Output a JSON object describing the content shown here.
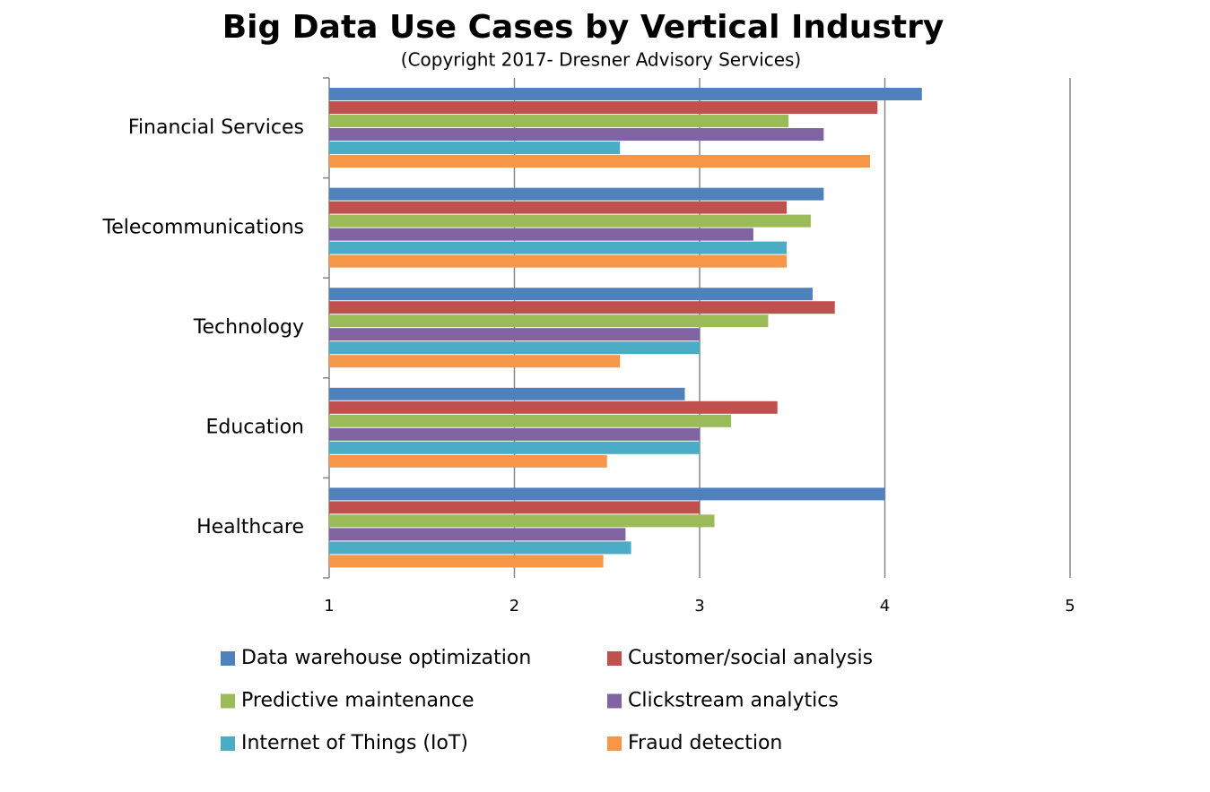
{
  "chart_data": {
    "type": "hbar",
    "title": "Big Data Use Cases by Vertical Industry",
    "subtitle": "(Copyright 2017- Dresner Advisory Services)",
    "categories": [
      "Financial Services",
      "Telecommunications",
      "Technology",
      "Education",
      "Healthcare"
    ],
    "series": [
      {
        "name": "Data warehouse optimization",
        "color": "#4f81bd",
        "values": [
          4.2,
          3.67,
          3.61,
          2.92,
          4.0
        ]
      },
      {
        "name": "Customer/social analysis",
        "color": "#c0504d",
        "values": [
          3.96,
          3.47,
          3.73,
          3.42,
          3.0
        ]
      },
      {
        "name": "Predictive maintenance",
        "color": "#9bbb59",
        "values": [
          3.48,
          3.6,
          3.37,
          3.17,
          3.08
        ]
      },
      {
        "name": "Clickstream analytics",
        "color": "#8064a2",
        "values": [
          3.67,
          3.29,
          3.0,
          3.0,
          2.6
        ]
      },
      {
        "name": "Internet of Things (IoT)",
        "color": "#4bacc6",
        "values": [
          2.57,
          3.47,
          3.0,
          3.0,
          2.63
        ]
      },
      {
        "name": "Fraud detection",
        "color": "#f79646",
        "values": [
          3.92,
          3.47,
          2.57,
          2.5,
          2.48
        ]
      }
    ],
    "xlim": [
      1,
      5
    ],
    "xticks": [
      1,
      2,
      3,
      4,
      5
    ],
    "grid": true,
    "legend": "bottom"
  }
}
